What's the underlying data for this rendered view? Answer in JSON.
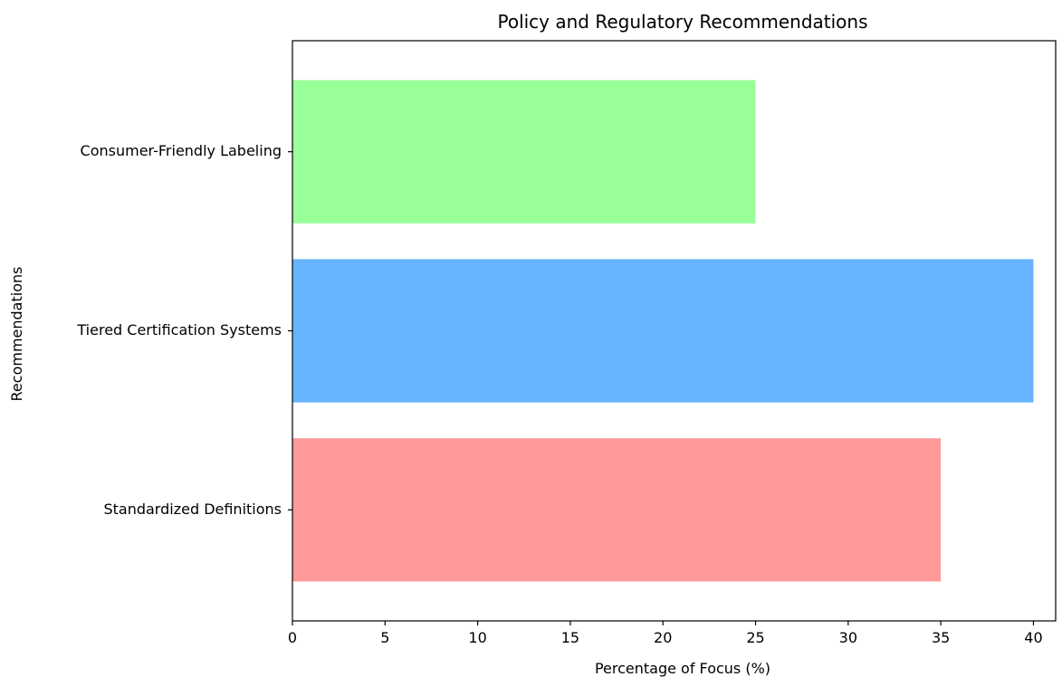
{
  "chart_data": {
    "type": "bar",
    "orientation": "horizontal",
    "title": "Policy and Regulatory Recommendations",
    "xlabel": "Percentage of Focus (%)",
    "ylabel": "Recommendations",
    "categories": [
      "Standardized Definitions",
      "Tiered Certification Systems",
      "Consumer-Friendly Labeling"
    ],
    "values": [
      35,
      40,
      25
    ],
    "colors": [
      "#ff9999",
      "#66b3ff",
      "#99ff99"
    ],
    "xlim": [
      0,
      41.2
    ],
    "xticks": [
      0,
      5,
      10,
      15,
      20,
      25,
      30,
      35,
      40
    ],
    "grid": false,
    "legend": "none"
  }
}
